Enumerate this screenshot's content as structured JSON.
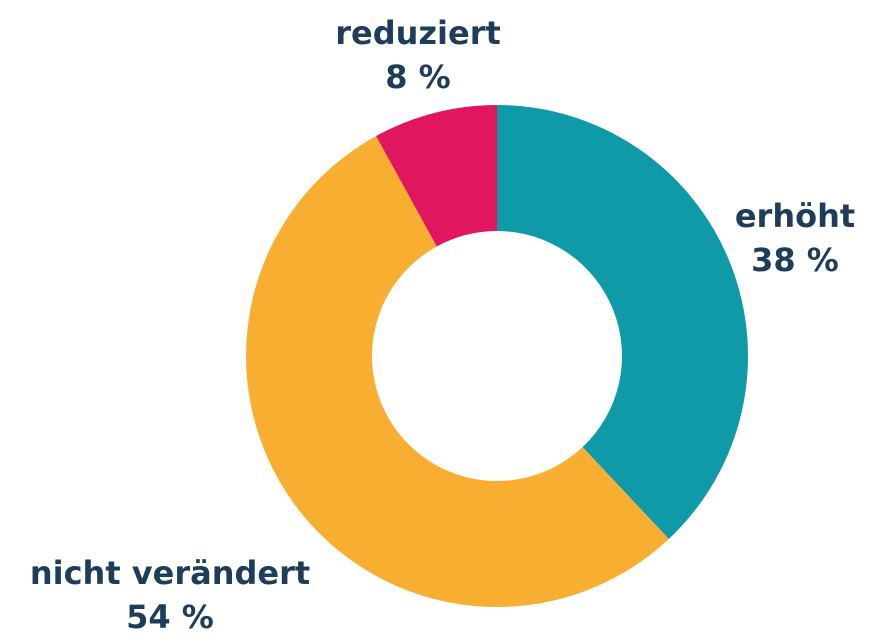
{
  "chart_data": {
    "type": "donut",
    "categories": [
      "erhöht",
      "nicht verändert",
      "reduziert"
    ],
    "values": [
      38,
      54,
      8
    ],
    "value_labels": [
      "38 %",
      "54 %",
      "8 %"
    ],
    "colors": [
      "#0e9aa7",
      "#f8ae31",
      "#e0175f"
    ]
  }
}
